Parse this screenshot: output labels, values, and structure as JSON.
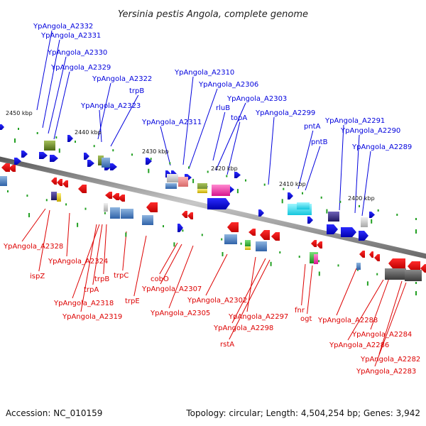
{
  "title": "Yersinia pestis Angola, complete genome",
  "footer": {
    "accession": "Accession: NC_010159",
    "stats": "Topology: circular; Length: 4,504,254 bp; Genes: 3,942"
  },
  "colors": {
    "forward": "#0000dd",
    "reverse": "#dd0000",
    "backbone": "#808080",
    "tick": "#22a022"
  },
  "scale_labels": [
    "2450 kbp",
    "2440 kbp",
    "2430 kbp",
    "2420 kbp",
    "2410 kbp",
    "2400 kbp"
  ],
  "forward_labels": [
    "YpAngola_A2332",
    "YpAngola_A2331",
    "YpAngola_A2330",
    "YpAngola_A2329",
    "YpAngola_A2322",
    "trpB",
    "YpAngola_A2323",
    "YpAngola_A2310",
    "YpAngola_A2306",
    "rluB",
    "YpAngola_A2311",
    "YpAngola_A2303",
    "topA",
    "YpAngola_A2299",
    "pntA",
    "YpAngola_A2291",
    "YpAngola_A2290",
    "pntB",
    "YpAngola_A2289"
  ],
  "reverse_labels": [
    "YpAngola_A2328",
    "ispZ",
    "YpAngola_A2324",
    "trpB",
    "trpA",
    "trpC",
    "YpAngola_A2318",
    "YpAngola_A2319",
    "trpE",
    "cobO",
    "YpAngola_A2307",
    "YpAngola_A2305",
    "YpAngola_A2302",
    "YpAngola_A2297",
    "YpAngola_A2298",
    "rstA",
    "fnr",
    "ogt",
    "YpAngola_A2288",
    "YpAngola_A2284",
    "YpAngola_A2286",
    "YpAngola_A2282",
    "YpAngola_A2283"
  ]
}
